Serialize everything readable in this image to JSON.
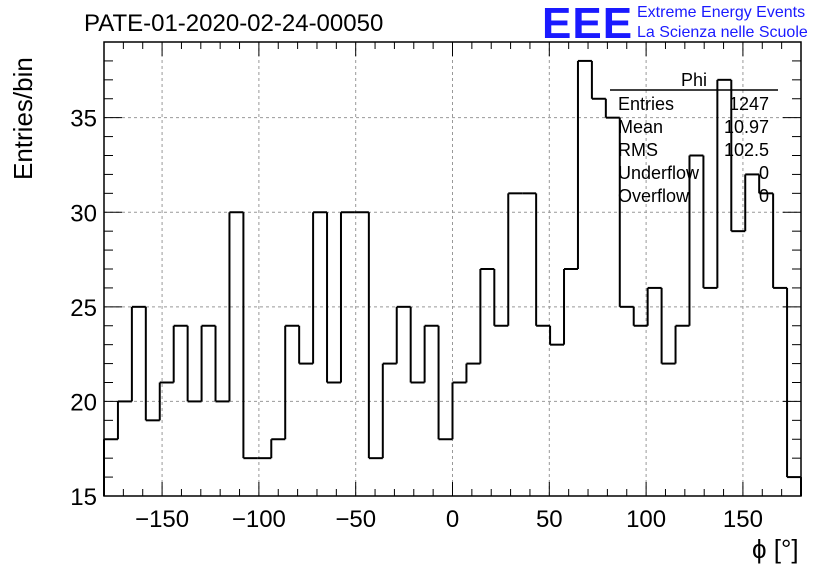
{
  "title": "PATE-01-2020-02-24-00050",
  "logo": {
    "mark": "EEE",
    "line1": "Extreme Energy Events",
    "line2": "La Scienza nelle Scuole"
  },
  "chart_data": {
    "type": "bar",
    "style": "step-histogram",
    "title": "PATE-01-2020-02-24-00050",
    "xlabel": "ϕ [°]",
    "ylabel": "Entries/bin",
    "xlim": [
      -180,
      180
    ],
    "ylim": [
      15,
      39
    ],
    "bin_width": 7.2,
    "x_ticks": [
      -150,
      -100,
      -50,
      0,
      50,
      100,
      150
    ],
    "y_ticks": [
      15,
      20,
      25,
      30,
      35
    ],
    "grid": true,
    "values": [
      18,
      20,
      25,
      19,
      21,
      24,
      20,
      24,
      20,
      30,
      17,
      17,
      18,
      24,
      22,
      30,
      21,
      30,
      30,
      17,
      22,
      25,
      21,
      24,
      18,
      21,
      22,
      27,
      24,
      31,
      31,
      24,
      23,
      27,
      38,
      36,
      35,
      25,
      24,
      26,
      22,
      24,
      33,
      26,
      37,
      29,
      32,
      31,
      26,
      16
    ]
  },
  "stats": {
    "name": "Phi",
    "rows": [
      {
        "label": "Entries",
        "value": "1247"
      },
      {
        "label": "Mean",
        "value": "10.97"
      },
      {
        "label": "RMS",
        "value": "102.5"
      },
      {
        "label": "Underflow",
        "value": "0"
      },
      {
        "label": "Overflow",
        "value": "0"
      }
    ]
  }
}
